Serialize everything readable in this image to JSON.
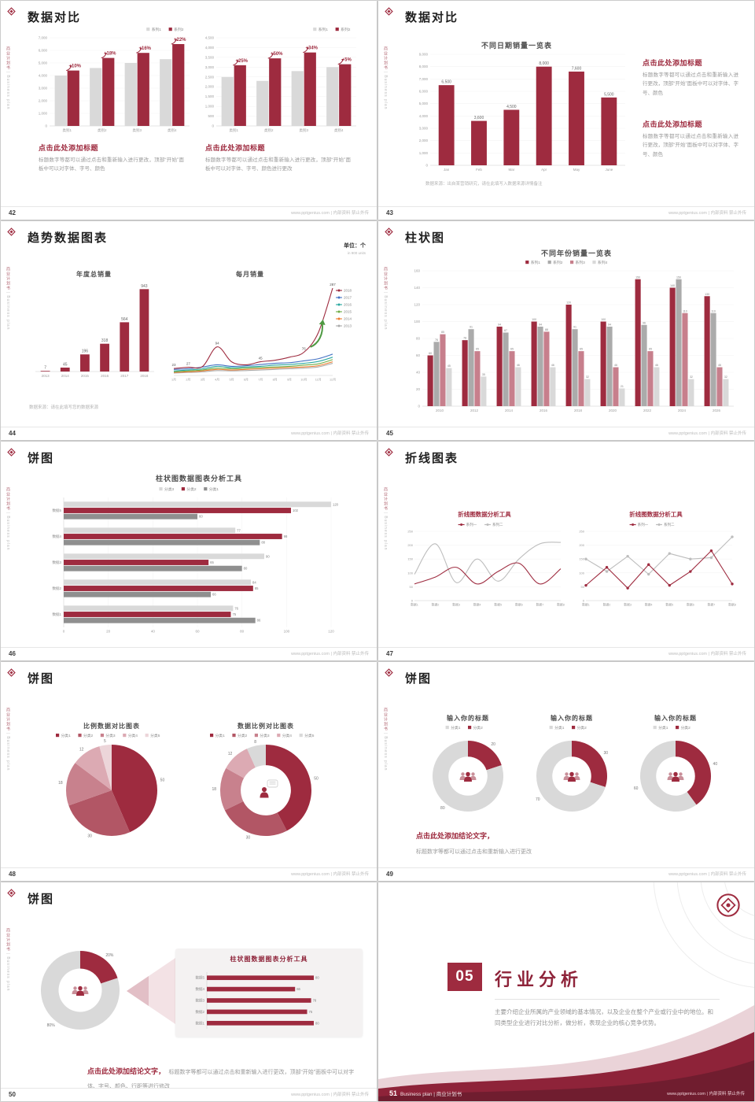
{
  "site_footer": "www.pptgenius.com | 内部资料 禁止外传",
  "sidebar": {
    "cn": "商业计划书",
    "sep": "|",
    "en": "Business plan"
  },
  "palette": {
    "red": "#9E2B3F",
    "red_dark": "#7C2233",
    "rose": "#C77F8C",
    "gray_bar": "#D9D9D9",
    "gray_mid": "#ABABAB",
    "gray_dark": "#8F8F8F",
    "gray_line": "#BDBDBD",
    "blue": "#4472C4",
    "teal": "#2BA8A0",
    "green": "#70AD47",
    "orange": "#ED7D31"
  },
  "slides": [
    {
      "page": "42",
      "title": "数据对比",
      "charts": [
        {
          "type": "vbar",
          "y_max": 7000,
          "y_ticks": [
            "7,000",
            "6,000",
            "5,000",
            "4,000",
            "3,000",
            "2,000",
            "1,000",
            "0"
          ],
          "categories": [
            "类别1",
            "类别2",
            "类别3",
            "类别4"
          ],
          "series": [
            {
              "name": "系列1",
              "color": "gray_bar",
              "values": [
                4000,
                4600,
                5000,
                5300
              ]
            },
            {
              "name": "系列2",
              "color": "red",
              "values": [
                4400,
                5400,
                5800,
                6500
              ]
            }
          ],
          "annotations": [
            "+10%",
            "+18%",
            "+16%",
            "+22%"
          ],
          "legend": "right"
        },
        {
          "type": "vbar",
          "y_max": 4500,
          "y_ticks": [
            "4,500",
            "4,000",
            "3,500",
            "3,000",
            "2,500",
            "2,000",
            "1,500",
            "1,000",
            "500",
            "0"
          ],
          "categories": [
            "类别1",
            "类别2",
            "类别3",
            "类别4"
          ],
          "series": [
            {
              "name": "系列1",
              "color": "gray_bar",
              "values": [
                2500,
                2300,
                2800,
                3000
              ]
            },
            {
              "name": "系列2",
              "color": "red",
              "values": [
                3100,
                3450,
                3750,
                3150
              ]
            }
          ],
          "annotations": [
            "+25%",
            "+50%",
            "+34%",
            "+5%"
          ],
          "legend": "right"
        }
      ],
      "blocks": [
        {
          "heading": "点击此处添加标题",
          "body": "标题数字等都可以通过点击和重新输入进行更改，顶部“开始”面板中可以对字体、字号、颜色"
        },
        {
          "heading": "点击此处添加标题",
          "body": "标题数字等都可以通过点击和重新输入进行更改，顶部“开始”面板中可以对字体、字号、颜色进行更改"
        }
      ]
    },
    {
      "page": "43",
      "title": "数据对比",
      "chart_title": "不同日期销量一览表",
      "charts": [
        {
          "type": "vbar",
          "y_max": 9000,
          "y_ticks": [
            "9,000",
            "8,000",
            "7,000",
            "6,000",
            "5,000",
            "4,000",
            "3,000",
            "2,000",
            "1,000",
            "0"
          ],
          "categories": [
            "Jan",
            "Feb",
            "Mar",
            "Apr",
            "May",
            "June"
          ],
          "series": [
            {
              "name": "",
              "color": "red",
              "values": [
                6500,
                3600,
                4500,
                8000,
                7600,
                5500
              ]
            }
          ],
          "labels": [
            "6,500",
            "3,600",
            "4,500",
            "8,000",
            "7,600",
            "5,500"
          ]
        }
      ],
      "blocks": [
        {
          "heading": "点击此处添加标题",
          "body": "标题数字等都可以通过点击和重新输入进行更改，顶部“开始”面板中可以对字体、字号、颜色"
        },
        {
          "heading": "点击此处添加标题",
          "body": "标题数字等都可以通过点击和重新输入进行更改，顶部“开始”面板中可以对字体、字号、颜色"
        }
      ],
      "source": "数据来源：出自某营销研究，请在此填写入数据来源详情备注"
    },
    {
      "page": "44",
      "title": "趋势数据图表",
      "unit": "单位：个",
      "unit_sub": "in 900 units",
      "chart_titles": [
        "年度总销量",
        "每月销量"
      ],
      "charts": [
        {
          "type": "vbar",
          "y_max": 1000,
          "categories": [
            "2013",
            "2014",
            "2015",
            "2016",
            "2017",
            "2018"
          ],
          "series": [
            {
              "name": "",
              "color": "red",
              "values": [
                7,
                45,
                196,
                318,
                564,
                943
              ]
            }
          ],
          "labels": [
            "7",
            "45",
            "196",
            "318",
            "564",
            "943"
          ]
        },
        {
          "type": "line",
          "y_max": 300,
          "x": [
            "1月",
            "2月",
            "3月",
            "4月",
            "5月",
            "6月",
            "7月",
            "8月",
            "9月",
            "10月",
            "11月",
            "12月"
          ],
          "series": [
            {
              "name": "2018",
              "color": "red",
              "values": [
                23,
                27,
                30,
                94,
                45,
                35,
                45,
                50,
                60,
                76,
                140,
                287
              ],
              "labels": {
                "0": "23",
                "1": "27",
                "3": "94",
                "6": "45",
                "9": "76",
                "11": "287"
              }
            },
            {
              "name": "2017",
              "color": "blue",
              "values": [
                20,
                22,
                28,
                35,
                30,
                32,
                36,
                40,
                42,
                48,
                55,
                70
              ]
            },
            {
              "name": "2016",
              "color": "teal",
              "values": [
                15,
                18,
                22,
                30,
                26,
                28,
                30,
                34,
                36,
                40,
                46,
                60
              ]
            },
            {
              "name": "2015",
              "color": "green",
              "values": [
                12,
                15,
                18,
                24,
                22,
                24,
                26,
                28,
                30,
                34,
                38,
                52
              ]
            },
            {
              "name": "2014",
              "color": "orange",
              "values": [
                10,
                12,
                15,
                20,
                18,
                20,
                22,
                24,
                26,
                28,
                32,
                45
              ]
            },
            {
              "name": "2013",
              "color": "gray_mid",
              "values": [
                8,
                10,
                12,
                16,
                15,
                16,
                18,
                20,
                22,
                24,
                28,
                40
              ]
            }
          ],
          "legend": "right",
          "smooth": true,
          "arrow": true
        }
      ],
      "source": "数据来源：请在此填写您的数据来源"
    },
    {
      "page": "45",
      "title": "柱状图",
      "chart_title": "不同年份销量一览表",
      "charts": [
        {
          "type": "vbar",
          "y_max": 160,
          "y_ticks": [
            "160",
            "140",
            "120",
            "100",
            "80",
            "60",
            "40",
            "20",
            "0"
          ],
          "categories": [
            "2010",
            "2012",
            "2014",
            "2016",
            "2018",
            "2020",
            "2022",
            "2024",
            "2026"
          ],
          "series": [
            {
              "name": "系列1",
              "color": "red",
              "values": [
                60,
                78,
                94,
                100,
                120,
                100,
                150,
                140,
                130
              ]
            },
            {
              "name": "系列2",
              "color": "gray_mid",
              "values": [
                76,
                91,
                87,
                94,
                91,
                94,
                96,
                150,
                110
              ]
            },
            {
              "name": "系列3",
              "color": "rose",
              "values": [
                85,
                65,
                65,
                88,
                65,
                46,
                65,
                110,
                46
              ]
            },
            {
              "name": "系列4",
              "color": "gray_bar",
              "values": [
                45,
                35,
                46,
                46,
                32,
                21,
                46,
                32,
                32
              ]
            }
          ],
          "labels": true,
          "legend": "top"
        }
      ]
    },
    {
      "page": "46",
      "title": "饼图",
      "chart_title": "柱状图数据图表分析工具",
      "charts": [
        {
          "type": "hbar",
          "x_max": 120,
          "x_ticks": [
            "0",
            "20",
            "40",
            "60",
            "80",
            "100",
            "120"
          ],
          "categories": [
            "数据5",
            "数据4",
            "数据3",
            "数据2",
            "数据1"
          ],
          "series": [
            {
              "name": "分类3",
              "color": "gray_bar",
              "values": [
                120,
                77,
                90,
                84,
                76
              ]
            },
            {
              "name": "分类2",
              "color": "red",
              "values": [
                102,
                98,
                65,
                85,
                75
              ]
            },
            {
              "name": "分类1",
              "color": "gray_dark",
              "values": [
                60,
                88,
                80,
                66,
                86
              ]
            }
          ],
          "labels": true,
          "legend": "top"
        }
      ]
    },
    {
      "page": "47",
      "title": "折线图表",
      "charts": [
        {
          "type": "line",
          "title": "折线图数据分析工具",
          "y_max": 250,
          "y_ticks": [
            "250",
            "200",
            "150",
            "100",
            "50",
            "0"
          ],
          "x": [
            "数据1",
            "数据2",
            "数据3",
            "数据4",
            "数据5",
            "数据6",
            "数据7",
            "数据8"
          ],
          "series": [
            {
              "name": "系列一",
              "color": "red",
              "values": [
                60,
                85,
                120,
                60,
                105,
                135,
                60,
                115
              ]
            },
            {
              "name": "系列二",
              "color": "gray_line",
              "values": [
                95,
                205,
                65,
                150,
                70,
                150,
                205,
                210
              ]
            }
          ],
          "legend": "top",
          "smooth": true
        },
        {
          "type": "line",
          "title": "折线图数据分析工具",
          "y_max": 250,
          "y_ticks": [
            "250",
            "200",
            "150",
            "100",
            "50",
            "0"
          ],
          "x": [
            "数据1",
            "数据2",
            "数据3",
            "数据4",
            "数据5",
            "数据6",
            "数据7",
            "数据8"
          ],
          "series": [
            {
              "name": "系列一",
              "color": "red",
              "values": [
                55,
                120,
                45,
                130,
                55,
                105,
                180,
                60
              ]
            },
            {
              "name": "系列二",
              "color": "gray_line",
              "values": [
                150,
                105,
                160,
                95,
                170,
                150,
                155,
                230
              ]
            }
          ],
          "legend": "top",
          "markers": true
        }
      ]
    },
    {
      "page": "48",
      "title": "饼图",
      "chart_titles": [
        "比例数据对比图表",
        "数据比例对比图表"
      ],
      "charts": [
        {
          "type": "pie",
          "legend_items": [
            {
              "label": "分类1",
              "color": "red"
            },
            {
              "label": "分类2",
              "color": "#B25665"
            },
            {
              "label": "分类3",
              "color": "#C8818D"
            },
            {
              "label": "分类4",
              "color": "#DCAAB3"
            },
            {
              "label": "分类5",
              "color": "#ECD5D9"
            }
          ],
          "slices": [
            {
              "v": 50,
              "color": "red",
              "label": "50"
            },
            {
              "v": 30,
              "color": "#B25665",
              "label": "30"
            },
            {
              "v": 18,
              "color": "#C8818D",
              "label": "18"
            },
            {
              "v": 12,
              "color": "#DCAAB3",
              "label": "12"
            },
            {
              "v": 5,
              "color": "#ECD5D9",
              "label": "5"
            }
          ]
        },
        {
          "type": "donut",
          "legend_items": [
            {
              "label": "分类1",
              "color": "red"
            },
            {
              "label": "分类2",
              "color": "#B25665"
            },
            {
              "label": "分类3",
              "color": "#C8818D"
            },
            {
              "label": "分类4",
              "color": "#DCAAB3"
            },
            {
              "label": "分类5",
              "color": "gray_bar"
            }
          ],
          "slices": [
            {
              "v": 50,
              "color": "red",
              "label": "50"
            },
            {
              "v": 30,
              "color": "#B25665",
              "label": "30"
            },
            {
              "v": 18,
              "color": "#C8818D",
              "label": "18"
            },
            {
              "v": 12,
              "color": "#DCAAB3",
              "label": "12"
            },
            {
              "v": 8,
              "color": "gray_bar",
              "label": "8"
            }
          ],
          "icon": "person"
        }
      ]
    },
    {
      "page": "49",
      "title": "饼图",
      "chart_titles": [
        "输入你的标题",
        "输入你的标题",
        "输入你的标题"
      ],
      "charts": [
        {
          "type": "donut",
          "legend_items": [
            {
              "label": "分类1",
              "color": "gray_bar"
            },
            {
              "label": "分类2",
              "color": "red"
            }
          ],
          "slices": [
            {
              "v": 20,
              "color": "red",
              "label": "20"
            },
            {
              "v": 80,
              "color": "gray_bar",
              "label": "80"
            }
          ],
          "icon": "people"
        },
        {
          "type": "donut",
          "legend_items": [
            {
              "label": "分类1",
              "color": "gray_bar"
            },
            {
              "label": "分类2",
              "color": "red"
            }
          ],
          "slices": [
            {
              "v": 30,
              "color": "red",
              "label": "30"
            },
            {
              "v": 70,
              "color": "gray_bar",
              "label": "70"
            }
          ],
          "icon": "people"
        },
        {
          "type": "donut",
          "legend_items": [
            {
              "label": "分类1",
              "color": "gray_bar"
            },
            {
              "label": "分类2",
              "color": "red"
            }
          ],
          "slices": [
            {
              "v": 40,
              "color": "red",
              "label": "40"
            },
            {
              "v": 60,
              "color": "gray_bar",
              "label": "60"
            }
          ],
          "icon": "people"
        }
      ],
      "conclusion": {
        "heading": "点击此处添加结论文字，",
        "body": "标题数字等都可以通过点击和重新输入进行更改"
      }
    },
    {
      "page": "50",
      "title": "饼图",
      "panel_title": "柱状图数据图表分析工具",
      "charts": [
        {
          "type": "donut",
          "slices": [
            {
              "v": 20,
              "color": "red",
              "label": "20%"
            },
            {
              "v": 80,
              "color": "gray_bar",
              "label": "80%"
            }
          ],
          "icon": "people"
        },
        {
          "type": "hbar",
          "x_max": 100,
          "categories": [
            "数据5",
            "数据4",
            "数据3",
            "数据2",
            "数据1"
          ],
          "series": [
            {
              "name": "",
              "color": "red",
              "values": [
                80,
                66,
                78,
                75,
                80
              ]
            }
          ],
          "labels": true
        }
      ],
      "conclusion": {
        "heading": "点击此处添加结论文字，",
        "body": "标题数字等都可以通过点击和重新输入进行更改，顶部“开始”面板中可以对字体、字号、颜色、行距等进行修改"
      }
    },
    {
      "page": "51",
      "number": "05",
      "title": "行业分析",
      "body": "主要介绍企业所属的产业领域的基本情况，以及企业在整个产业或行业中的地位。和同类型企业进行对比分析，做分析，表现企业的核心竞争优势。",
      "footer_left": "Business plan | 商业计划书"
    }
  ]
}
